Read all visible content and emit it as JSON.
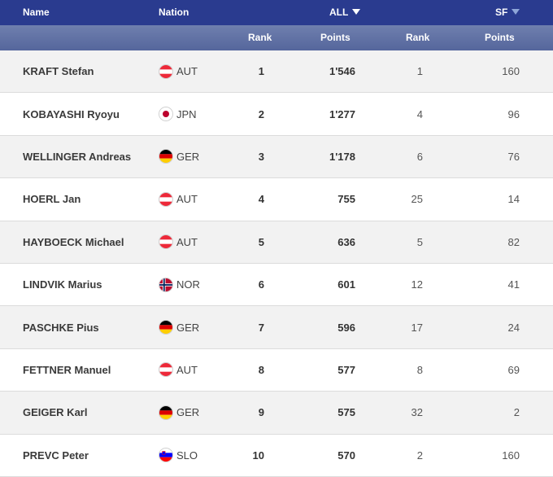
{
  "header": {
    "name": "Name",
    "nation": "Nation",
    "all": "ALL",
    "sf": "SF",
    "rank": "Rank",
    "points": "Points"
  },
  "rows": [
    {
      "name": "KRAFT Stefan",
      "nation": "AUT",
      "rank_all": "1",
      "points_all": "1'546",
      "rank_sf": "1",
      "points_sf": "160"
    },
    {
      "name": "KOBAYASHI Ryoyu",
      "nation": "JPN",
      "rank_all": "2",
      "points_all": "1'277",
      "rank_sf": "4",
      "points_sf": "96"
    },
    {
      "name": "WELLINGER Andreas",
      "nation": "GER",
      "rank_all": "3",
      "points_all": "1'178",
      "rank_sf": "6",
      "points_sf": "76"
    },
    {
      "name": "HOERL Jan",
      "nation": "AUT",
      "rank_all": "4",
      "points_all": "755",
      "rank_sf": "25",
      "points_sf": "14"
    },
    {
      "name": "HAYBOECK Michael",
      "nation": "AUT",
      "rank_all": "5",
      "points_all": "636",
      "rank_sf": "5",
      "points_sf": "82"
    },
    {
      "name": "LINDVIK Marius",
      "nation": "NOR",
      "rank_all": "6",
      "points_all": "601",
      "rank_sf": "12",
      "points_sf": "41"
    },
    {
      "name": "PASCHKE Pius",
      "nation": "GER",
      "rank_all": "7",
      "points_all": "596",
      "rank_sf": "17",
      "points_sf": "24"
    },
    {
      "name": "FETTNER Manuel",
      "nation": "AUT",
      "rank_all": "8",
      "points_all": "577",
      "rank_sf": "8",
      "points_sf": "69"
    },
    {
      "name": "GEIGER Karl",
      "nation": "GER",
      "rank_all": "9",
      "points_all": "575",
      "rank_sf": "32",
      "points_sf": "2"
    },
    {
      "name": "PREVC Peter",
      "nation": "SLO",
      "rank_all": "10",
      "points_all": "570",
      "rank_sf": "2",
      "points_sf": "160"
    }
  ],
  "colors": {
    "header_bg": "#2a3b8f",
    "subheader_bg": "#6070a5",
    "row_alt": "#f2f2f2"
  }
}
